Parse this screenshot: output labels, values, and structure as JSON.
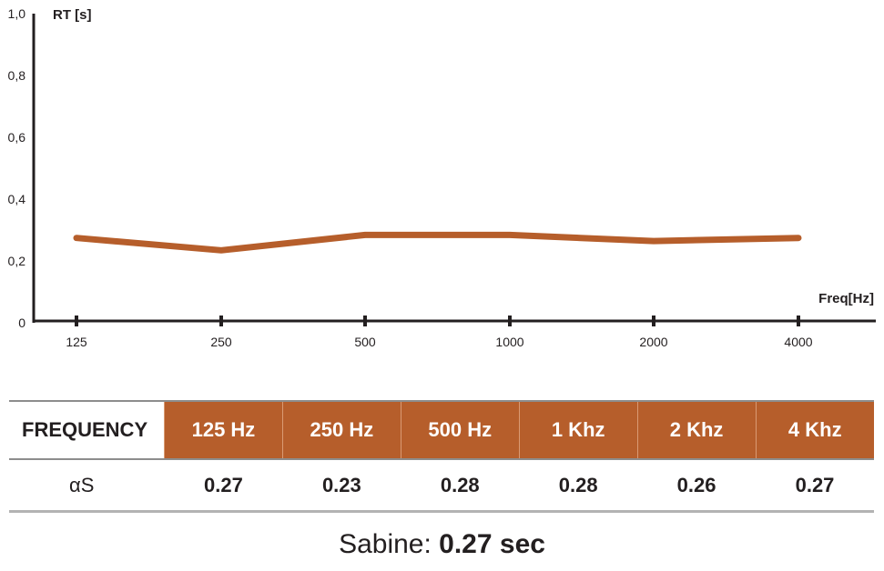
{
  "chart_data": {
    "type": "line",
    "ylabel": "RT [s]",
    "xlabel": "Freq[Hz]",
    "y_ticks": [
      "1,0",
      "0,8",
      "0,6",
      "0,4",
      "0,2",
      "0"
    ],
    "ylim": [
      0,
      1.0
    ],
    "categories": [
      "125",
      "250",
      "500",
      "1000",
      "2000",
      "4000"
    ],
    "values": [
      0.27,
      0.23,
      0.28,
      0.28,
      0.26,
      0.27
    ],
    "line_color": "#b65e2b",
    "grid": false
  },
  "table": {
    "header_label": "FREQUENCY",
    "headers": [
      "125 Hz",
      "250 Hz",
      "500 Hz",
      "1 Khz",
      "2 Khz",
      "4 Khz"
    ],
    "row_label": "αS",
    "values": [
      "0.27",
      "0.23",
      "0.28",
      "0.28",
      "0.26",
      "0.27"
    ],
    "header_color": "#b65e2b"
  },
  "sabine": {
    "label": "Sabine:",
    "value": "0.27 sec"
  }
}
